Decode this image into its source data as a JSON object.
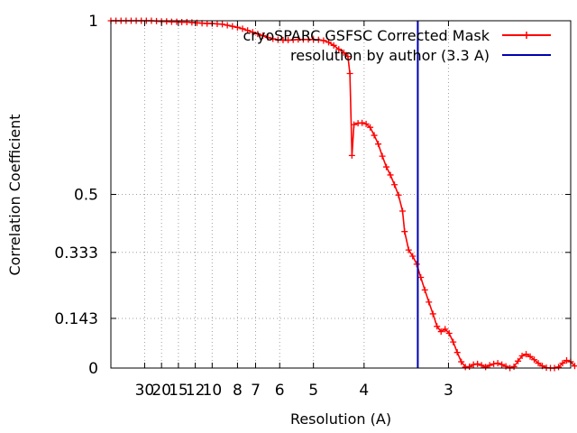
{
  "chart_data": {
    "type": "line",
    "xlabel": "Resolution (A)",
    "ylabel": "Correlation Coefficient",
    "x_scale": "reciprocal",
    "x_range_inverse_angstrom": [
      0.0,
      0.454
    ],
    "ylim": [
      0,
      1
    ],
    "grid": true,
    "legend_position": "top-right",
    "y_ticks": [
      {
        "value": 1,
        "label": "1"
      },
      {
        "value": 0.5,
        "label": "0.5"
      },
      {
        "value": 0.333,
        "label": "0.333"
      },
      {
        "value": 0.143,
        "label": "0.143"
      },
      {
        "value": 0,
        "label": "0"
      }
    ],
    "x_ticks": [
      {
        "resolution": 30,
        "label": "30"
      },
      {
        "resolution": 20,
        "label": "20"
      },
      {
        "resolution": 15,
        "label": "15"
      },
      {
        "resolution": 12,
        "label": "12"
      },
      {
        "resolution": 10,
        "label": "10"
      },
      {
        "resolution": 8,
        "label": "8"
      },
      {
        "resolution": 7,
        "label": "7"
      },
      {
        "resolution": 6,
        "label": "6"
      },
      {
        "resolution": 5,
        "label": "5"
      },
      {
        "resolution": 4,
        "label": "4"
      },
      {
        "resolution": 3,
        "label": "3"
      }
    ],
    "series": [
      {
        "name": "cryoSPARC GSFSC Corrected Mask",
        "color": "#ff0000",
        "marker": "plus",
        "points": [
          [
            0.0,
            1.0
          ],
          [
            0.005,
            1.0
          ],
          [
            0.01,
            1.0
          ],
          [
            0.015,
            1.0
          ],
          [
            0.02,
            1.0
          ],
          [
            0.025,
            1.0
          ],
          [
            0.03,
            1.0
          ],
          [
            0.035,
            1.0
          ],
          [
            0.04,
            1.0
          ],
          [
            0.045,
            0.999
          ],
          [
            0.05,
            0.998
          ],
          [
            0.055,
            0.998
          ],
          [
            0.06,
            0.997
          ],
          [
            0.065,
            0.997
          ],
          [
            0.07,
            0.996
          ],
          [
            0.075,
            0.996
          ],
          [
            0.08,
            0.995
          ],
          [
            0.085,
            0.994
          ],
          [
            0.09,
            0.993
          ],
          [
            0.095,
            0.992
          ],
          [
            0.1,
            0.992
          ],
          [
            0.105,
            0.991
          ],
          [
            0.11,
            0.99
          ],
          [
            0.115,
            0.987
          ],
          [
            0.12,
            0.984
          ],
          [
            0.125,
            0.981
          ],
          [
            0.13,
            0.977
          ],
          [
            0.135,
            0.972
          ],
          [
            0.14,
            0.967
          ],
          [
            0.145,
            0.962
          ],
          [
            0.15,
            0.957
          ],
          [
            0.155,
            0.952
          ],
          [
            0.16,
            0.948
          ],
          [
            0.165,
            0.945
          ],
          [
            0.17,
            0.944
          ],
          [
            0.175,
            0.944
          ],
          [
            0.18,
            0.945
          ],
          [
            0.185,
            0.946
          ],
          [
            0.19,
            0.946
          ],
          [
            0.195,
            0.946
          ],
          [
            0.2,
            0.946
          ],
          [
            0.205,
            0.945
          ],
          [
            0.21,
            0.943
          ],
          [
            0.215,
            0.938
          ],
          [
            0.22,
            0.929
          ],
          [
            0.225,
            0.918
          ],
          [
            0.23,
            0.908
          ],
          [
            0.234,
            0.897
          ],
          [
            0.236,
            0.848
          ],
          [
            0.238,
            0.612
          ],
          [
            0.24,
            0.701
          ],
          [
            0.244,
            0.705
          ],
          [
            0.248,
            0.706
          ],
          [
            0.252,
            0.703
          ],
          [
            0.256,
            0.693
          ],
          [
            0.26,
            0.67
          ],
          [
            0.264,
            0.645
          ],
          [
            0.268,
            0.61
          ],
          [
            0.272,
            0.579
          ],
          [
            0.276,
            0.556
          ],
          [
            0.28,
            0.528
          ],
          [
            0.284,
            0.498
          ],
          [
            0.288,
            0.452
          ],
          [
            0.29,
            0.393
          ],
          [
            0.294,
            0.34
          ],
          [
            0.298,
            0.322
          ],
          [
            0.302,
            0.299
          ],
          [
            0.306,
            0.261
          ],
          [
            0.31,
            0.225
          ],
          [
            0.314,
            0.19
          ],
          [
            0.318,
            0.156
          ],
          [
            0.322,
            0.12
          ],
          [
            0.326,
            0.105
          ],
          [
            0.33,
            0.112
          ],
          [
            0.334,
            0.1
          ],
          [
            0.338,
            0.075
          ],
          [
            0.342,
            0.045
          ],
          [
            0.346,
            0.018
          ],
          [
            0.35,
            0.003
          ],
          [
            0.354,
            0.004
          ],
          [
            0.358,
            0.01
          ],
          [
            0.362,
            0.012
          ],
          [
            0.366,
            0.008
          ],
          [
            0.37,
            0.003
          ],
          [
            0.374,
            0.008
          ],
          [
            0.378,
            0.012
          ],
          [
            0.382,
            0.014
          ],
          [
            0.386,
            0.01
          ],
          [
            0.39,
            0.005
          ],
          [
            0.394,
            0.0
          ],
          [
            0.398,
            0.004
          ],
          [
            0.402,
            0.02
          ],
          [
            0.406,
            0.035
          ],
          [
            0.41,
            0.04
          ],
          [
            0.414,
            0.033
          ],
          [
            0.418,
            0.024
          ],
          [
            0.422,
            0.014
          ],
          [
            0.426,
            0.006
          ],
          [
            0.43,
            0.001
          ],
          [
            0.434,
            0.0
          ],
          [
            0.438,
            0.0
          ],
          [
            0.442,
            0.003
          ],
          [
            0.446,
            0.014
          ],
          [
            0.45,
            0.022
          ],
          [
            0.454,
            0.018
          ],
          [
            0.458,
            0.006
          ]
        ]
      },
      {
        "name": "resolution by author (3.3 A)",
        "color": "#0000b0",
        "vertical_at_resolution": 3.3
      }
    ]
  }
}
